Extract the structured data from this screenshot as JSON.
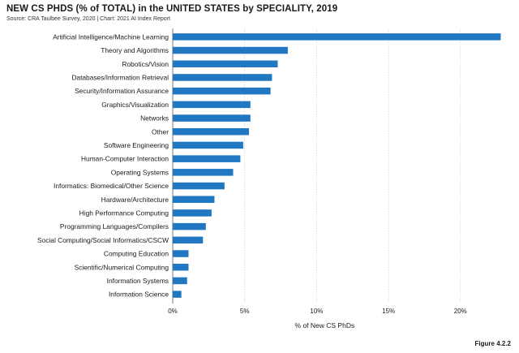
{
  "chart_data": {
    "type": "bar",
    "orientation": "horizontal",
    "title": "NEW CS PHDS (% of TOTAL) in the UNITED STATES by SPECIALITY, 2019",
    "subtitle": "Source: CRA Taulbee Survey, 2020 | Chart: 2021 AI Index Report",
    "xlabel": "% of New CS PhDs",
    "xlim": [
      0,
      23
    ],
    "xticks": [
      0,
      5,
      10,
      15,
      20
    ],
    "xtick_labels": [
      "0%",
      "5%",
      "10%",
      "15%",
      "20%"
    ],
    "grid": "vertical",
    "bar_color": "#1f78c1",
    "categories": [
      "Artificial Intelligence/Machine Learning",
      "Theory and Algorithms",
      "Robotics/Vision",
      "Databases/Information Retrieval",
      "Security/Information Assurance",
      "Graphics/Visualization",
      "Networks",
      "Other",
      "Software Engineering",
      "Human-Computer Interaction",
      "Operating Systems",
      "Informatics: Biomedical/Other Science",
      "Hardware/Architecture",
      "High Performance Computing",
      "Programming Languages/Compilers",
      "Social Computing/Social Informatics/CSCW",
      "Computing Education",
      "Scientific/Numerical Computing",
      "Information Systems",
      "Information Science"
    ],
    "values": [
      22.8,
      8.0,
      7.3,
      6.9,
      6.8,
      5.4,
      5.4,
      5.3,
      4.9,
      4.7,
      4.2,
      3.6,
      2.9,
      2.7,
      2.3,
      2.1,
      1.1,
      1.1,
      1.0,
      0.6
    ]
  },
  "figure_label": "Figure 4.2.2"
}
